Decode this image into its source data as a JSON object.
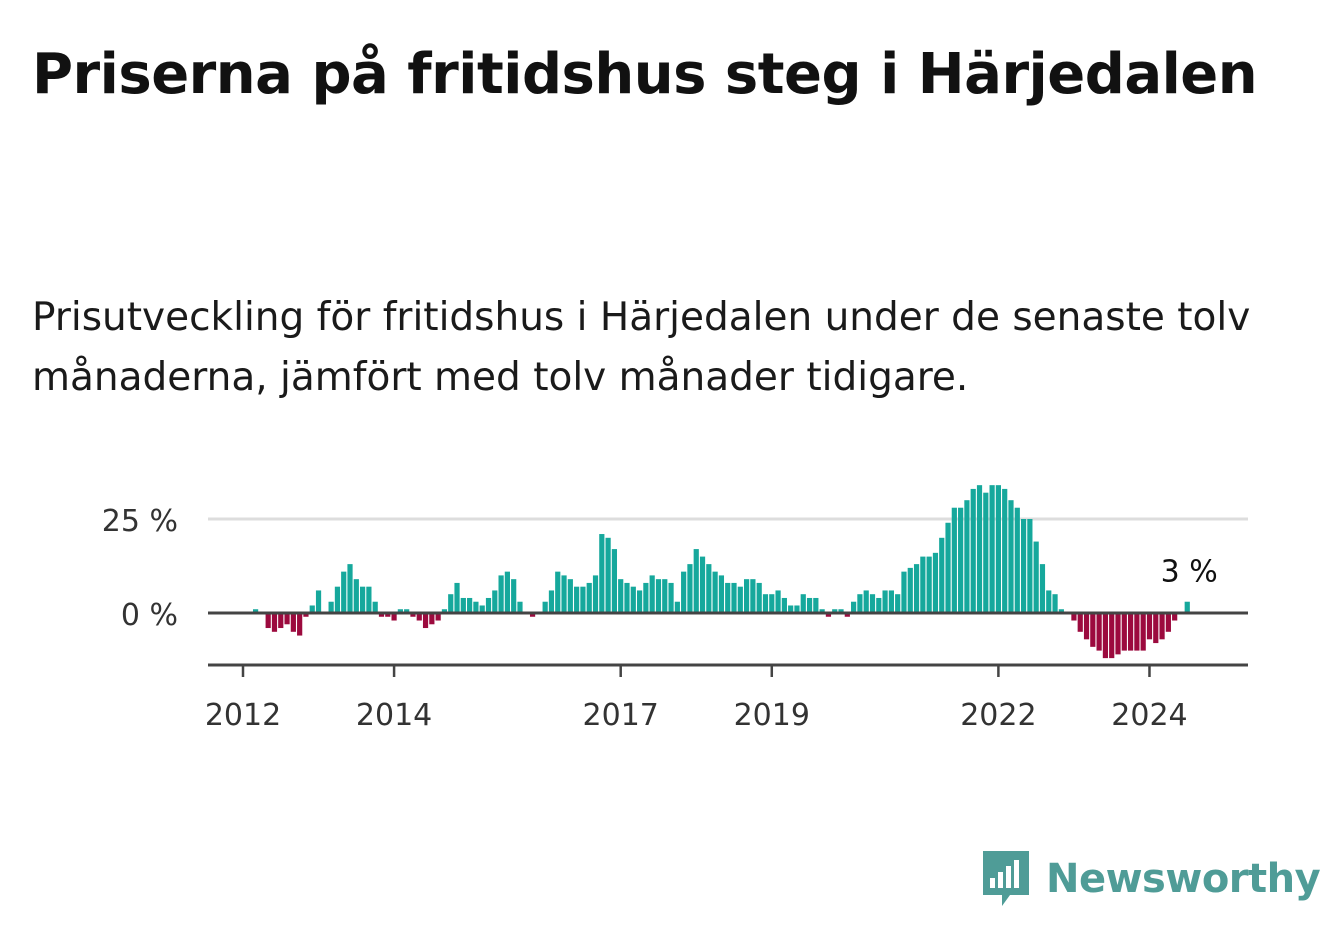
{
  "title": "Priserna på fritidshus steg i Härjedalen",
  "subtitle": "Prisutveckling för fritidshus i Härjedalen under de senaste tolv månaderna, jämfört med tolv månader tidigare.",
  "brand": {
    "name": "Newsworthy",
    "icon": "newsworthy-logo-icon"
  },
  "colors": {
    "positive": "#16a89c",
    "negative": "#9c0a3e",
    "grid": "#dddddd",
    "axis": "#444444"
  },
  "chart_data": {
    "type": "bar",
    "x_tick_labels": [
      "2012",
      "2014",
      "2017",
      "2019",
      "2022",
      "2024"
    ],
    "y_tick_labels": [
      "25 %",
      "0 %"
    ],
    "y_ticks": [
      25,
      0
    ],
    "ylim": [
      -13,
      37
    ],
    "last_value_label": "3 %",
    "grid": true,
    "start": "2012-01",
    "values": [
      0,
      0,
      1,
      0,
      -4,
      -5,
      -4,
      -3,
      -5,
      -6,
      -1,
      2,
      6,
      0,
      3,
      7,
      11,
      13,
      9,
      7,
      7,
      3,
      -1,
      -1,
      -2,
      1,
      1,
      -1,
      -2,
      -4,
      -3,
      -2,
      1,
      5,
      8,
      4,
      4,
      3,
      2,
      4,
      6,
      10,
      11,
      9,
      3,
      0,
      -1,
      0,
      3,
      6,
      11,
      10,
      9,
      7,
      7,
      8,
      10,
      21,
      20,
      17,
      9,
      8,
      7,
      6,
      8,
      10,
      9,
      9,
      8,
      3,
      11,
      13,
      17,
      15,
      13,
      11,
      10,
      8,
      8,
      7,
      9,
      9,
      8,
      5,
      5,
      6,
      4,
      2,
      2,
      5,
      4,
      4,
      1,
      -1,
      1,
      1,
      -1,
      3,
      5,
      6,
      5,
      4,
      6,
      6,
      5,
      11,
      12,
      13,
      15,
      15,
      16,
      20,
      24,
      28,
      28,
      30,
      33,
      34,
      32,
      34,
      34,
      33,
      30,
      28,
      25,
      25,
      19,
      13,
      6,
      5,
      1,
      0,
      -2,
      -5,
      -7,
      -9,
      -10,
      -12,
      -12,
      -11,
      -10,
      -10,
      -10,
      -10,
      -7,
      -8,
      -7,
      -5,
      -2,
      0,
      3
    ]
  }
}
